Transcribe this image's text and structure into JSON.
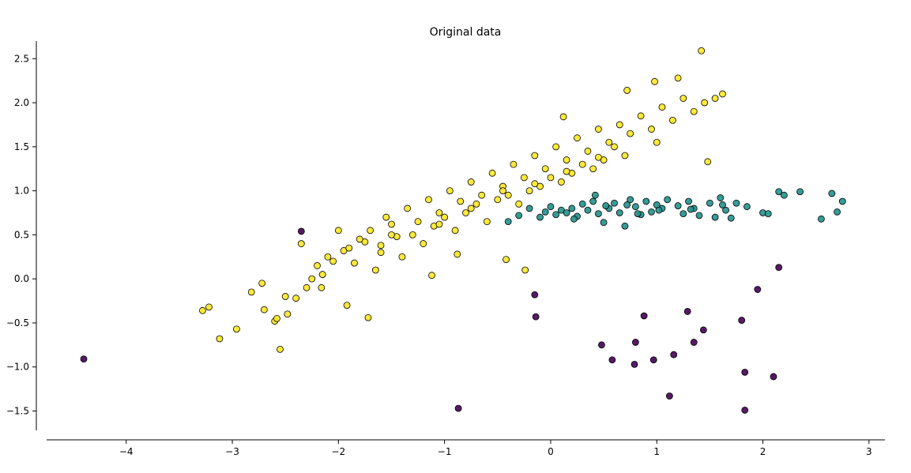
{
  "chart_data": {
    "type": "scatter",
    "title": "Original data",
    "xlabel": "",
    "ylabel": "",
    "xlim": [
      -4.75,
      3.15
    ],
    "ylim": [
      -1.72,
      2.7
    ],
    "xticks": [
      -4,
      -3,
      -2,
      -1,
      0,
      1,
      2,
      3
    ],
    "yticks": [
      -1.5,
      -1.0,
      -0.5,
      0.0,
      0.5,
      1.0,
      1.5,
      2.0,
      2.5
    ],
    "xtick_labels": [
      "−4",
      "−3",
      "−2",
      "−1",
      "0",
      "1",
      "2",
      "3"
    ],
    "ytick_labels": [
      "−1.5",
      "−1.0",
      "−0.5",
      "0.0",
      "0.5",
      "1.0",
      "1.5",
      "2.0",
      "2.5"
    ],
    "grid": false,
    "colors": {
      "class0": "#440154",
      "class1": "#21918c",
      "class2": "#fde725",
      "edge": "#000000"
    },
    "series": [
      {
        "color_key": "class0",
        "x": [
          -4.4,
          -2.35,
          -0.87,
          -0.15,
          -0.14,
          0.48,
          0.58,
          0.79,
          0.8,
          0.88,
          0.97,
          1.12,
          1.16,
          1.29,
          1.35,
          1.44,
          1.8,
          1.83,
          1.83,
          1.95,
          2.1,
          2.15
        ],
        "y": [
          -0.91,
          0.54,
          -1.47,
          -0.18,
          -0.43,
          -0.75,
          -0.92,
          -0.97,
          -0.72,
          -0.42,
          -0.92,
          -1.33,
          -0.86,
          -0.37,
          -0.72,
          -0.58,
          -0.47,
          -1.06,
          -1.49,
          -0.12,
          -1.11,
          0.13
        ]
      },
      {
        "color_key": "class1",
        "x": [
          -0.4,
          -0.3,
          -0.2,
          -0.1,
          -0.05,
          0.0,
          0.05,
          0.1,
          0.15,
          0.2,
          0.25,
          0.3,
          0.35,
          0.4,
          0.45,
          0.5,
          0.55,
          0.6,
          0.65,
          0.7,
          0.75,
          0.8,
          0.85,
          0.9,
          0.95,
          1.0,
          1.05,
          1.1,
          1.2,
          1.25,
          1.3,
          1.35,
          1.4,
          1.5,
          1.55,
          1.6,
          1.65,
          1.7,
          1.75,
          1.85,
          2.0,
          2.05,
          2.15,
          2.2,
          2.35,
          2.55,
          2.65,
          2.7,
          2.75,
          0.42,
          0.72,
          1.02,
          1.32,
          1.62,
          0.22,
          0.52,
          0.82
        ],
        "y": [
          0.65,
          0.72,
          0.8,
          0.7,
          0.76,
          0.82,
          0.73,
          0.78,
          0.75,
          0.8,
          0.71,
          0.85,
          0.78,
          0.88,
          0.74,
          0.64,
          0.8,
          0.86,
          0.75,
          0.6,
          0.9,
          0.82,
          0.73,
          0.88,
          0.76,
          0.84,
          0.8,
          0.9,
          0.83,
          0.74,
          0.88,
          0.8,
          0.72,
          0.86,
          0.7,
          0.92,
          0.78,
          0.69,
          0.86,
          0.82,
          0.75,
          0.74,
          0.99,
          0.95,
          0.99,
          0.68,
          0.97,
          0.76,
          0.88,
          0.95,
          0.84,
          0.78,
          0.79,
          0.84,
          0.68,
          0.83,
          0.74
        ]
      },
      {
        "color_key": "class2",
        "x": [
          -3.28,
          -3.22,
          -3.12,
          -2.96,
          -2.82,
          -2.72,
          -2.6,
          -2.55,
          -2.48,
          -2.4,
          -2.3,
          -2.15,
          -2.05,
          -1.95,
          -1.85,
          -1.75,
          -1.7,
          -1.6,
          -1.5,
          -1.55,
          -1.45,
          -1.35,
          -1.25,
          -1.15,
          -1.05,
          -0.95,
          -0.85,
          -0.75,
          -0.65,
          -0.55,
          -0.45,
          -0.35,
          -0.25,
          -0.15,
          -0.05,
          0.05,
          0.15,
          0.25,
          0.35,
          0.45,
          0.55,
          0.65,
          0.75,
          0.85,
          0.95,
          1.05,
          1.15,
          1.25,
          1.35,
          1.45,
          1.55,
          1.62,
          1.48,
          1.42,
          1.2,
          0.98,
          0.72,
          -2.58,
          -2.7,
          -1.92,
          -2.16,
          -1.72,
          -1.12,
          -0.88,
          -0.42,
          -0.24,
          0.12,
          -2.35,
          -2.0,
          -1.6,
          -1.3,
          -1.0,
          -0.7,
          -0.4,
          -0.1,
          0.2,
          0.5,
          -2.2,
          -1.8,
          -1.4,
          -1.1,
          -0.8,
          -0.5,
          -0.2,
          0.1,
          0.4,
          0.7,
          1.0,
          -2.5,
          -2.1,
          -1.65,
          -1.2,
          -0.9,
          -0.6,
          -0.3,
          0.0,
          0.3,
          0.6,
          -2.25,
          -1.9,
          -1.5,
          -1.05,
          -0.75,
          -0.45,
          -0.15,
          0.15,
          0.45
        ],
        "y": [
          -0.36,
          -0.32,
          -0.68,
          -0.57,
          -0.15,
          -0.05,
          -0.48,
          -0.8,
          -0.4,
          -0.22,
          -0.1,
          0.05,
          0.2,
          0.32,
          0.18,
          0.42,
          0.55,
          0.38,
          0.62,
          0.7,
          0.48,
          0.8,
          0.65,
          0.9,
          0.75,
          1.0,
          0.88,
          1.1,
          0.95,
          1.2,
          1.05,
          1.3,
          1.15,
          1.4,
          1.25,
          1.5,
          1.35,
          1.6,
          1.45,
          1.7,
          1.55,
          1.75,
          1.65,
          1.85,
          1.7,
          1.95,
          1.8,
          2.05,
          1.9,
          2.0,
          2.05,
          2.1,
          1.33,
          2.59,
          2.28,
          2.24,
          2.14,
          -0.45,
          -0.35,
          -0.3,
          -0.1,
          -0.44,
          0.04,
          0.28,
          0.22,
          0.1,
          1.84,
          0.4,
          0.55,
          0.3,
          0.5,
          0.7,
          0.85,
          0.95,
          1.05,
          1.2,
          1.35,
          0.15,
          0.45,
          0.25,
          0.6,
          0.75,
          0.9,
          1.0,
          1.1,
          1.25,
          1.4,
          1.55,
          -0.2,
          0.25,
          0.1,
          0.4,
          0.55,
          0.65,
          0.85,
          1.15,
          1.3,
          1.5,
          0.0,
          0.35,
          0.5,
          0.62,
          0.8,
          1.0,
          1.08,
          1.22,
          1.38
        ]
      }
    ]
  }
}
